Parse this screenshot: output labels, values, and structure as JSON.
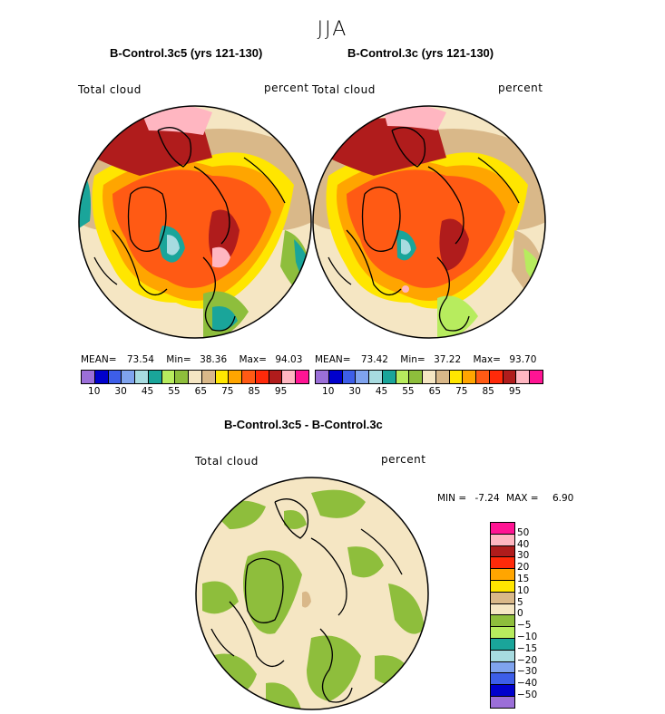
{
  "season": "JJA",
  "variable": "Total cloud",
  "units": "percent",
  "panels": [
    {
      "title": "B-Control.3c5 (yrs 121-130)",
      "mean_label": "MEAN=",
      "mean": "73.54",
      "min_label": "Min=",
      "min": "38.36",
      "max_label": "Max=",
      "max": "94.03"
    },
    {
      "title": "B-Control.3c (yrs 121-130)",
      "mean_label": "MEAN=",
      "mean": "73.42",
      "min_label": "Min=",
      "min": "37.22",
      "max_label": "Max=",
      "max": "93.70"
    }
  ],
  "diff_panel": {
    "title": "B-Control.3c5 - B-Control.3c",
    "min_label": "MIN =",
    "min": "-7.24",
    "max_label": "MAX =",
    "max": "6.90"
  },
  "chart_data": [
    {
      "type": "heatmap",
      "title": "B-Control.3c5 (yrs 121-130)",
      "subtitle": "Total cloud",
      "units": "percent",
      "projection": "north polar stereographic",
      "stats": {
        "mean": 73.54,
        "min": 38.36,
        "max": 94.03
      },
      "colorbar": {
        "levels": [
          10,
          20,
          30,
          40,
          45,
          50,
          55,
          60,
          65,
          70,
          75,
          80,
          85,
          90,
          95
        ],
        "tick_labels": [
          "10",
          "30",
          "45",
          "55",
          "65",
          "75",
          "85",
          "95"
        ],
        "colors": [
          "#9b6fd8",
          "#0000cc",
          "#3d5ee8",
          "#7fa3ee",
          "#a7dbe0",
          "#1aa59a",
          "#b7ec5e",
          "#8ebe3c",
          "#f5e6c3",
          "#d9b889",
          "#ffe600",
          "#ffa500",
          "#ff5a14",
          "#ff2a0a",
          "#b01c1c",
          "#ffb6c1",
          "#ff1493"
        ]
      }
    },
    {
      "type": "heatmap",
      "title": "B-Control.3c (yrs 121-130)",
      "subtitle": "Total cloud",
      "units": "percent",
      "projection": "north polar stereographic",
      "stats": {
        "mean": 73.42,
        "min": 37.22,
        "max": 93.7
      },
      "colorbar": {
        "levels": [
          10,
          20,
          30,
          40,
          45,
          50,
          55,
          60,
          65,
          70,
          75,
          80,
          85,
          90,
          95
        ],
        "tick_labels": [
          "10",
          "30",
          "45",
          "55",
          "65",
          "75",
          "85",
          "95"
        ],
        "colors": [
          "#9b6fd8",
          "#0000cc",
          "#3d5ee8",
          "#7fa3ee",
          "#a7dbe0",
          "#1aa59a",
          "#b7ec5e",
          "#8ebe3c",
          "#f5e6c3",
          "#d9b889",
          "#ffe600",
          "#ffa500",
          "#ff5a14",
          "#ff2a0a",
          "#b01c1c",
          "#ffb6c1",
          "#ff1493"
        ]
      }
    },
    {
      "type": "heatmap",
      "title": "B-Control.3c5 - B-Control.3c",
      "subtitle": "Total cloud",
      "units": "percent",
      "projection": "north polar stereographic",
      "stats": {
        "min": -7.24,
        "max": 6.9
      },
      "colorbar": {
        "levels": [
          50,
          40,
          30,
          20,
          15,
          10,
          5,
          0,
          -5,
          -10,
          -15,
          -20,
          -30,
          -40,
          -50
        ],
        "tick_labels": [
          "50",
          "40",
          "30",
          "20",
          "15",
          "10",
          "5",
          "0",
          "−5",
          "−10",
          "−15",
          "−20",
          "−30",
          "−40",
          "−50"
        ],
        "colors": [
          "#ff1493",
          "#ffb6c1",
          "#b01c1c",
          "#ff2a0a",
          "#ffa500",
          "#ffe600",
          "#d9b889",
          "#f5e6c3",
          "#8ebe3c",
          "#b7ec5e",
          "#1aa59a",
          "#a7dbe0",
          "#7fa3ee",
          "#3d5ee8",
          "#0000cc",
          "#9b6fd8"
        ]
      }
    }
  ]
}
